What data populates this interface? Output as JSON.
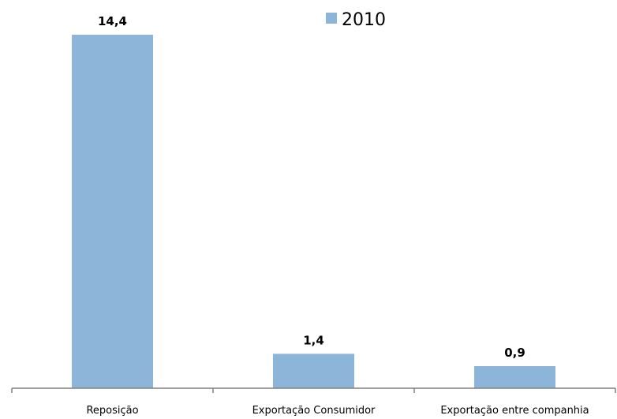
{
  "chart_data": {
    "type": "bar",
    "categories": [
      "Reposição",
      "Exportação Consumidor",
      "Exportação entre companhia"
    ],
    "series": [
      {
        "name": "2010",
        "values": [
          14.4,
          1.4,
          0.9
        ],
        "value_labels": [
          "14,4",
          "1,4",
          "0,9"
        ]
      }
    ],
    "ylim": [
      0,
      14.4
    ],
    "grid": false,
    "legend": "top-center",
    "colors": {
      "bar": "#8db4d9",
      "axis": "#808080"
    }
  }
}
